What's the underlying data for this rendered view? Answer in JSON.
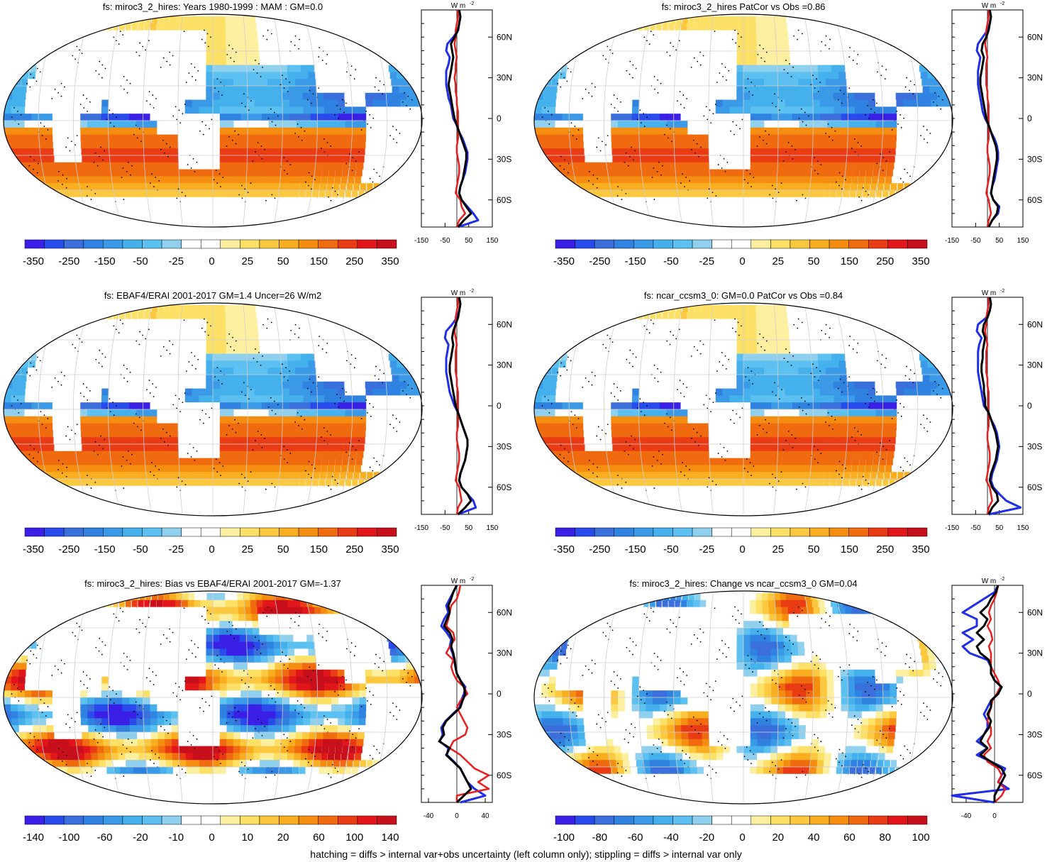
{
  "caption": "hatching = diffs > internal var+obs uncertainty (left column only); stippling = diffs > internal var only",
  "profile_unit": "W m",
  "profile_unit_sup": "-2",
  "lat_labels": [
    "60N",
    "30N",
    "0",
    "30S",
    "60S"
  ],
  "colors": {
    "palette": [
      "#3a1fe6",
      "#2a4bec",
      "#3a6fdc",
      "#2f82e0",
      "#3a9ae8",
      "#44b0ec",
      "#5cc0f0",
      "#8fd0ee",
      "#ffffff",
      "#ffffff",
      "#fcf0a0",
      "#fde066",
      "#fbc840",
      "#f9ae20",
      "#f58e10",
      "#f06a10",
      "#ea3c14",
      "#e2161a",
      "#c8101c"
    ],
    "land": "#ffffff",
    "grid": "#cfcfcf",
    "line_black": "#000000",
    "line_blue": "#1f2ee8",
    "line_red": "#e81e1e"
  },
  "chart_data": [
    {
      "type": "heatmap",
      "title": "fs: miroc3_2_hires: Years 1980-1999 : MAM : GM=0.0",
      "colorbar_labels": [
        "-350",
        "-250",
        "-150",
        "-50",
        "-25",
        "0",
        "25",
        "50",
        "150",
        "250",
        "350"
      ],
      "profile": {
        "xticks": [
          "-150",
          "-50",
          "50",
          "150"
        ],
        "xlim": [
          -150,
          150
        ],
        "lat": [
          80,
          75,
          70,
          65,
          60,
          55,
          50,
          45,
          40,
          35,
          30,
          25,
          20,
          15,
          10,
          5,
          0,
          -5,
          -10,
          -15,
          -20,
          -25,
          -30,
          -35,
          -40,
          -45,
          -50,
          -55,
          -60,
          -65,
          -70,
          -75,
          -80
        ],
        "series": [
          {
            "color": "black",
            "values": [
              10,
              15,
              10,
              5,
              -10,
              -25,
              -20,
              -15,
              -20,
              -25,
              -30,
              -35,
              -30,
              -25,
              -20,
              -15,
              -10,
              0,
              10,
              20,
              30,
              40,
              40,
              35,
              30,
              25,
              15,
              10,
              20,
              40,
              60,
              30,
              5
            ]
          },
          {
            "color": "blue",
            "values": [
              10,
              15,
              10,
              5,
              -15,
              -40,
              -45,
              -30,
              -35,
              -45,
              -45,
              -45,
              -40,
              -35,
              -25,
              -20,
              -15,
              0,
              10,
              25,
              35,
              45,
              45,
              40,
              35,
              25,
              15,
              10,
              20,
              45,
              70,
              90,
              5
            ]
          },
          {
            "color": "red",
            "values": [
              5,
              5,
              0,
              -5,
              -5,
              -10,
              -5,
              0,
              -5,
              -5,
              -10,
              -5,
              -5,
              0,
              0,
              5,
              5,
              5,
              5,
              5,
              0,
              0,
              5,
              10,
              10,
              5,
              0,
              -5,
              15,
              20,
              35,
              10,
              0
            ]
          }
        ]
      }
    },
    {
      "type": "heatmap",
      "title": "fs: miroc3_2_hires PatCor vs Obs =0.86",
      "colorbar_labels": [
        "-350",
        "-250",
        "-150",
        "-50",
        "-25",
        "0",
        "25",
        "50",
        "150",
        "250",
        "350"
      ],
      "profile": {
        "xticks": [
          "-150",
          "-50",
          "50",
          "150"
        ],
        "xlim": [
          -150,
          150
        ],
        "lat": [
          80,
          75,
          70,
          65,
          60,
          55,
          50,
          45,
          40,
          35,
          30,
          25,
          20,
          15,
          10,
          5,
          0,
          -5,
          -10,
          -15,
          -20,
          -25,
          -30,
          -35,
          -40,
          -45,
          -50,
          -55,
          -60,
          -65,
          -70,
          -75,
          -80
        ],
        "series": [
          {
            "color": "black",
            "values": [
              10,
              15,
              10,
              5,
              -5,
              -20,
              -25,
              -15,
              -20,
              -25,
              -30,
              -30,
              -25,
              -20,
              -15,
              -10,
              -5,
              5,
              15,
              25,
              35,
              40,
              40,
              35,
              30,
              25,
              20,
              15,
              25,
              45,
              40,
              20,
              5
            ]
          },
          {
            "color": "blue",
            "values": [
              10,
              15,
              10,
              0,
              -20,
              -40,
              -45,
              -30,
              -35,
              -40,
              -40,
              -40,
              -35,
              -30,
              -25,
              -20,
              -10,
              5,
              15,
              30,
              40,
              45,
              45,
              40,
              35,
              30,
              20,
              15,
              25,
              50,
              45,
              20,
              5
            ]
          },
          {
            "color": "red",
            "values": [
              5,
              5,
              0,
              -5,
              -5,
              -10,
              -5,
              0,
              -5,
              -5,
              -5,
              -5,
              0,
              0,
              5,
              5,
              5,
              5,
              5,
              5,
              0,
              0,
              5,
              10,
              10,
              5,
              0,
              -5,
              5,
              10,
              15,
              5,
              0
            ]
          }
        ]
      }
    },
    {
      "type": "heatmap",
      "title": "fs: EBAF4/ERAI 2001-2017 GM=1.4 Uncer=26 W/m2",
      "colorbar_labels": [
        "-350",
        "-250",
        "-150",
        "-50",
        "-25",
        "0",
        "25",
        "50",
        "150",
        "250",
        "350"
      ],
      "profile": {
        "xticks": [
          "-150",
          "-50",
          "50",
          "150"
        ],
        "xlim": [
          -150,
          150
        ],
        "lat": [
          80,
          75,
          70,
          65,
          60,
          55,
          50,
          45,
          40,
          35,
          30,
          25,
          20,
          15,
          10,
          5,
          0,
          -5,
          -10,
          -15,
          -20,
          -25,
          -30,
          -35,
          -40,
          -45,
          -50,
          -55,
          -60,
          -65,
          -70,
          -75,
          -80
        ],
        "series": [
          {
            "color": "black",
            "values": [
              10,
              15,
              10,
              5,
              -5,
              -15,
              -20,
              -15,
              -20,
              -25,
              -30,
              -30,
              -25,
              -20,
              -15,
              -10,
              -5,
              5,
              15,
              25,
              35,
              45,
              45,
              40,
              35,
              25,
              15,
              10,
              20,
              45,
              60,
              35,
              5
            ]
          },
          {
            "color": "blue",
            "values": [
              10,
              15,
              10,
              0,
              -20,
              -45,
              -50,
              -35,
              -40,
              -45,
              -45,
              -45,
              -40,
              -35,
              -30,
              -20,
              -10,
              5,
              15,
              25,
              35,
              45,
              45,
              40,
              35,
              25,
              15,
              10,
              20,
              45,
              70,
              80,
              5
            ]
          },
          {
            "color": "red",
            "values": [
              5,
              5,
              0,
              -5,
              -5,
              -10,
              -5,
              0,
              -5,
              -5,
              -5,
              -5,
              0,
              0,
              5,
              5,
              5,
              5,
              5,
              5,
              0,
              0,
              5,
              10,
              10,
              5,
              0,
              -5,
              10,
              15,
              20,
              5,
              0
            ]
          }
        ]
      }
    },
    {
      "type": "heatmap",
      "title": "fs: ncar_ccsm3_0: GM=0.0 PatCor vs Obs =0.84",
      "colorbar_labels": [
        "-350",
        "-250",
        "-150",
        "-50",
        "-25",
        "0",
        "25",
        "50",
        "150",
        "250",
        "350"
      ],
      "profile": {
        "xticks": [
          "-150",
          "-50",
          "50",
          "150"
        ],
        "xlim": [
          -150,
          150
        ],
        "lat": [
          80,
          75,
          70,
          65,
          60,
          55,
          50,
          45,
          40,
          35,
          30,
          25,
          20,
          15,
          10,
          5,
          0,
          -5,
          -10,
          -15,
          -20,
          -25,
          -30,
          -35,
          -40,
          -45,
          -50,
          -55,
          -60,
          -65,
          -70,
          -75,
          -80
        ],
        "series": [
          {
            "color": "black",
            "values": [
              10,
              15,
              10,
              0,
              -15,
              -20,
              -10,
              -15,
              -20,
              -20,
              -25,
              -25,
              -20,
              -15,
              -15,
              -10,
              -10,
              5,
              15,
              25,
              35,
              40,
              45,
              40,
              35,
              25,
              15,
              10,
              20,
              40,
              45,
              20,
              5
            ]
          },
          {
            "color": "blue",
            "values": [
              10,
              15,
              10,
              -5,
              -40,
              -45,
              -25,
              -35,
              -40,
              -40,
              -40,
              -40,
              -35,
              -30,
              -25,
              -20,
              -15,
              5,
              15,
              30,
              40,
              45,
              50,
              45,
              40,
              30,
              20,
              15,
              25,
              50,
              80,
              140,
              5
            ]
          },
          {
            "color": "red",
            "values": [
              5,
              5,
              0,
              -5,
              -5,
              -10,
              -5,
              0,
              -5,
              -5,
              -5,
              -5,
              0,
              0,
              5,
              5,
              5,
              5,
              5,
              5,
              0,
              0,
              5,
              10,
              10,
              5,
              0,
              -5,
              10,
              15,
              20,
              5,
              0
            ]
          }
        ]
      }
    },
    {
      "type": "heatmap",
      "title": "fs: miroc3_2_hires: Bias vs EBAF4/ERAI 2001-2017 GM=-1.37",
      "colorbar_labels": [
        "-140",
        "-100",
        "-60",
        "-20",
        "-10",
        "0",
        "10",
        "20",
        "60",
        "100",
        "140"
      ],
      "profile": {
        "xticks": [
          "-40",
          "0",
          "40"
        ],
        "xlim": [
          -50,
          50
        ],
        "lat": [
          80,
          75,
          70,
          65,
          60,
          55,
          50,
          45,
          40,
          35,
          30,
          25,
          20,
          15,
          10,
          5,
          0,
          -5,
          -10,
          -15,
          -20,
          -25,
          -30,
          -35,
          -40,
          -45,
          -50,
          -55,
          -60,
          -65,
          -70,
          -75,
          -80
        ],
        "series": [
          {
            "color": "black",
            "values": [
              0,
              -5,
              -8,
              -12,
              -10,
              -14,
              -18,
              -10,
              -6,
              -8,
              -5,
              -3,
              -2,
              0,
              5,
              10,
              12,
              8,
              5,
              -5,
              -15,
              -20,
              -18,
              -25,
              -10,
              -15,
              -5,
              5,
              10,
              15,
              20,
              10,
              0
            ]
          },
          {
            "color": "blue",
            "values": [
              0,
              -5,
              -10,
              -15,
              -12,
              -18,
              -22,
              -14,
              -8,
              -10,
              -6,
              -4,
              -2,
              0,
              5,
              12,
              10,
              6,
              4,
              -6,
              -16,
              -22,
              -20,
              -24,
              -12,
              -14,
              -4,
              5,
              10,
              15,
              25,
              40,
              5
            ]
          },
          {
            "color": "red",
            "values": [
              5,
              3,
              0,
              -8,
              -10,
              -12,
              -15,
              -5,
              -3,
              -10,
              -15,
              -5,
              -8,
              -5,
              0,
              10,
              15,
              5,
              0,
              5,
              10,
              15,
              12,
              -5,
              -10,
              5,
              15,
              25,
              45,
              30,
              45,
              0,
              0
            ]
          }
        ]
      }
    },
    {
      "type": "heatmap",
      "title": "fs: miroc3_2_hires: Change vs ncar_ccsm3_0 GM=0.04",
      "colorbar_labels": [
        "-100",
        "-80",
        "-60",
        "-40",
        "-20",
        "0",
        "20",
        "40",
        "60",
        "80",
        "100"
      ],
      "profile": {
        "xticks": [
          "-40",
          "0"
        ],
        "xlim": [
          -60,
          40
        ],
        "lat": [
          80,
          75,
          70,
          65,
          60,
          55,
          50,
          45,
          40,
          35,
          30,
          25,
          20,
          15,
          10,
          5,
          0,
          -5,
          -10,
          -15,
          -20,
          -25,
          -30,
          -35,
          -40,
          -45,
          -50,
          -55,
          -60,
          -65,
          -70,
          -75,
          -80
        ],
        "series": [
          {
            "color": "black",
            "values": [
              5,
              2,
              -5,
              -10,
              -20,
              -10,
              -15,
              -25,
              -15,
              -25,
              -20,
              -8,
              -5,
              -5,
              0,
              10,
              5,
              -5,
              -5,
              -10,
              -5,
              -8,
              -15,
              -20,
              -10,
              -20,
              -5,
              10,
              15,
              10,
              5,
              0,
              0
            ]
          },
          {
            "color": "blue",
            "values": [
              5,
              0,
              -15,
              -30,
              -45,
              -25,
              -25,
              -45,
              -30,
              -45,
              -35,
              -10,
              -5,
              -5,
              0,
              10,
              5,
              -5,
              -10,
              -15,
              -10,
              -10,
              -15,
              -25,
              -10,
              -25,
              -5,
              15,
              10,
              5,
              20,
              -60,
              0
            ]
          },
          {
            "color": "red",
            "values": [
              5,
              3,
              0,
              -5,
              -8,
              -5,
              -10,
              -5,
              -3,
              -8,
              -5,
              -5,
              -5,
              0,
              5,
              8,
              3,
              -3,
              -5,
              -8,
              -10,
              -5,
              -5,
              -10,
              -5,
              -15,
              -10,
              5,
              10,
              5,
              15,
              10,
              0
            ]
          }
        ]
      }
    }
  ]
}
